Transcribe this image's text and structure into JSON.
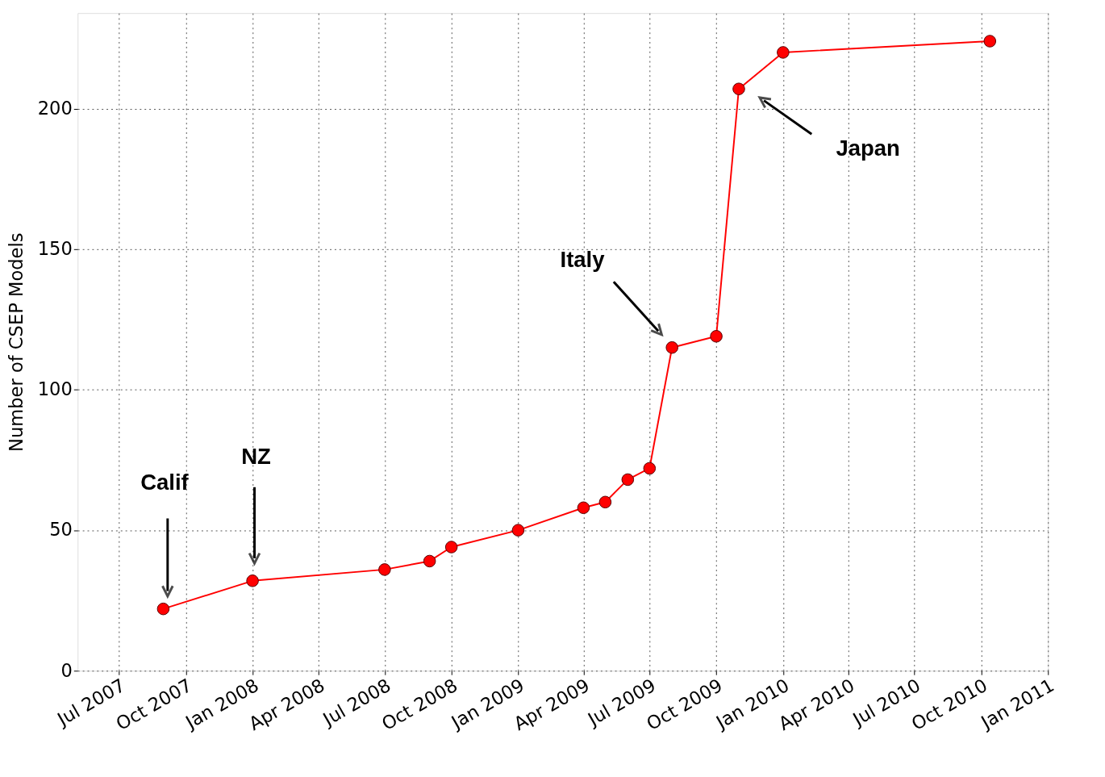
{
  "chart_data": {
    "type": "line",
    "ylabel": "Number of CSEP Models",
    "x": [
      "2007-08-31",
      "2008-01-01",
      "2008-07-01",
      "2008-09-01",
      "2008-10-01",
      "2009-01-01",
      "2009-04-01",
      "2009-05-01",
      "2009-06-01",
      "2009-07-01",
      "2009-08-01",
      "2009-10-01",
      "2009-11-01",
      "2010-01-01",
      "2010-10-13"
    ],
    "series": [
      {
        "color": "#ff0000",
        "values": [
          22,
          32,
          36,
          39,
          44,
          50,
          58,
          60,
          68,
          72,
          115,
          119,
          207,
          220,
          224
        ]
      }
    ],
    "marker": "circle",
    "line_style": "solid",
    "grid": true,
    "legend": false,
    "xlim": [
      "2007-05-05",
      "2011-01-01"
    ],
    "ylim": [
      0,
      234
    ],
    "yticks": [
      0,
      50,
      100,
      150,
      200
    ],
    "xticks": [
      {
        "value": "2007-07",
        "label": "Jul 2007"
      },
      {
        "value": "2007-10",
        "label": "Oct 2007"
      },
      {
        "value": "2008-01",
        "label": "Jan 2008"
      },
      {
        "value": "2008-04",
        "label": "Apr 2008"
      },
      {
        "value": "2008-07",
        "label": "Jul 2008"
      },
      {
        "value": "2008-10",
        "label": "Oct 2008"
      },
      {
        "value": "2009-01",
        "label": "Jan 2009"
      },
      {
        "value": "2009-04",
        "label": "Apr 2009"
      },
      {
        "value": "2009-07",
        "label": "Jul 2009"
      },
      {
        "value": "2009-10",
        "label": "Oct 2009"
      },
      {
        "value": "2010-01",
        "label": "Jan 2010"
      },
      {
        "value": "2010-04",
        "label": "Apr 2010"
      },
      {
        "value": "2010-07",
        "label": "Jul 2010"
      },
      {
        "value": "2010-10",
        "label": "Oct 2010"
      },
      {
        "value": "2011-01",
        "label": "Jan 2011"
      }
    ],
    "annotations": [
      "Calif",
      "NZ",
      "Italy",
      "Japan"
    ]
  }
}
